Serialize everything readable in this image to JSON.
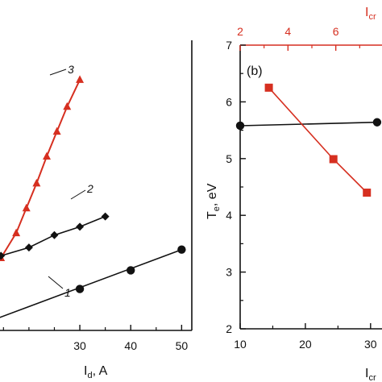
{
  "chart_data": [
    {
      "type": "line",
      "title": "",
      "xlabel": "I",
      "xlabel_subscript": "d",
      "xlabel_unit": ", A",
      "ylabel": "",
      "xlim": [
        14,
        52
      ],
      "ylim": [
        0,
        7
      ],
      "x_ticks": [
        30,
        40,
        50
      ],
      "x_tick_labels": [
        "30",
        "40",
        "50"
      ],
      "grid": false,
      "series": [
        {
          "name": "3",
          "color": "#d62f20",
          "marker": "triangle",
          "points": [
            [
              14.5,
              1.75
            ],
            [
              17.5,
              2.35
            ],
            [
              19.5,
              2.95
            ],
            [
              21.5,
              3.55
            ],
            [
              23.5,
              4.2
            ],
            [
              25.5,
              4.8
            ],
            [
              27.5,
              5.4
            ],
            [
              30,
              6.05
            ]
          ]
        },
        {
          "name": "2",
          "color": "#111111",
          "marker": "diamond",
          "points": [
            [
              14.5,
              1.8
            ],
            [
              20,
              2.0
            ],
            [
              25,
              2.3
            ],
            [
              30,
              2.5
            ],
            [
              35,
              2.75
            ]
          ]
        },
        {
          "name": "1",
          "color": "#111111",
          "marker": "circle",
          "points": [
            [
              30,
              1.0
            ],
            [
              40,
              1.45
            ],
            [
              50,
              1.95
            ]
          ]
        }
      ],
      "curve_labels": [
        "3",
        "2",
        "1"
      ]
    },
    {
      "type": "line",
      "title": "",
      "panel_label": "(b)",
      "xlabel": "I",
      "xlabel_subscript": "cr",
      "ylabel": "T",
      "ylabel_subscript": "e",
      "ylabel_unit": ", eV",
      "xlim": [
        10,
        32
      ],
      "ylim": [
        2,
        7
      ],
      "x_ticks": [
        10,
        20,
        30
      ],
      "x_tick_labels": [
        "10",
        "20",
        "30"
      ],
      "y_ticks": [
        2,
        3,
        4,
        5,
        6,
        7
      ],
      "y_tick_labels": [
        "2",
        "3",
        "4",
        "5",
        "6",
        "7"
      ],
      "top_axis": {
        "label": "I",
        "label_subscript": "cr",
        "color": "#d62f20",
        "xlim": [
          2,
          8
        ],
        "ticks": [
          2,
          4,
          6
        ],
        "tick_labels": [
          "2",
          "4",
          "6"
        ]
      },
      "grid": false,
      "series": [
        {
          "color": "#111111",
          "marker": "circle",
          "axis": "bottom",
          "points": [
            [
              10,
              5.58
            ],
            [
              31,
              5.64
            ]
          ]
        },
        {
          "color": "#d62f20",
          "marker": "square",
          "axis": "top",
          "points": [
            [
              3.2,
              6.25
            ],
            [
              5.9,
              4.99
            ],
            [
              7.3,
              4.4
            ]
          ]
        }
      ]
    }
  ]
}
